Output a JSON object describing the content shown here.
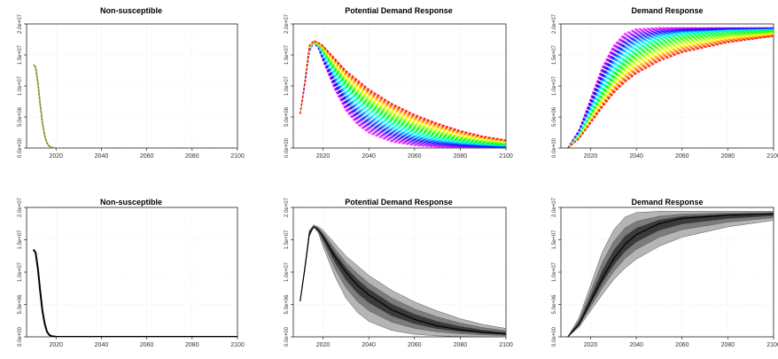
{
  "chart_data": [
    {
      "type": "line",
      "title": "Non-susceptible",
      "style": "rainbow",
      "xlim": [
        2007,
        2100
      ],
      "ylim": [
        0,
        20000000
      ],
      "x_ticks": [
        2020,
        2040,
        2060,
        2080,
        2100
      ],
      "y_ticks": [
        "0.0e+00",
        "5.0e+06",
        "1.0e+07",
        "1.5e+07",
        "2.0e+07"
      ],
      "series": [
        {
          "x": [
            2010,
            2011,
            2012,
            2013,
            2014,
            2015,
            2016,
            2017,
            2018,
            2020,
            2025,
            2030,
            2040,
            2060,
            2080,
            2100
          ],
          "values": [
            13500000,
            13000000,
            10500000,
            7000000,
            4000000,
            2000000,
            800000,
            300000,
            100000,
            20000,
            0,
            0,
            0,
            0,
            0,
            0
          ]
        }
      ]
    },
    {
      "type": "line",
      "title": "Potential Demand Response",
      "style": "rainbow",
      "xlim": [
        2007,
        2100
      ],
      "ylim": [
        0,
        20000000
      ],
      "x_ticks": [
        2020,
        2040,
        2060,
        2080,
        2100
      ],
      "y_ticks": [
        "0.0e+00",
        "5.0e+06",
        "1.0e+07",
        "1.5e+07",
        "2.0e+07"
      ],
      "series": [
        {
          "x": [
            2010,
            2012,
            2014,
            2016,
            2018,
            2020,
            2025,
            2030,
            2035,
            2040,
            2050,
            2060,
            2070,
            2080,
            2090,
            2100
          ],
          "values": [
            5500000,
            10000000,
            15500000,
            17000000,
            16000000,
            14000000,
            9500000,
            6000000,
            3800000,
            2400000,
            1000000,
            400000,
            150000,
            60000,
            20000,
            10000
          ]
        },
        {
          "x": [
            2010,
            2012,
            2014,
            2016,
            2018,
            2020,
            2025,
            2030,
            2035,
            2040,
            2050,
            2060,
            2070,
            2080,
            2090,
            2100
          ],
          "values": [
            5500000,
            10500000,
            16000000,
            17000000,
            16500000,
            15500000,
            12500000,
            10000000,
            8000000,
            6500000,
            4200000,
            2700000,
            1700000,
            1100000,
            700000,
            450000
          ]
        },
        {
          "x": [
            2010,
            2012,
            2014,
            2016,
            2018,
            2020,
            2025,
            2030,
            2035,
            2040,
            2050,
            2060,
            2070,
            2080,
            2090,
            2100
          ],
          "values": [
            5500000,
            10500000,
            16500000,
            17300000,
            17000000,
            16500000,
            14500000,
            12500000,
            11000000,
            9500000,
            7200000,
            5400000,
            4000000,
            2800000,
            1900000,
            1300000
          ]
        }
      ]
    },
    {
      "type": "line",
      "title": "Demand Response",
      "style": "rainbow",
      "xlim": [
        2007,
        2100
      ],
      "ylim": [
        0,
        20000000
      ],
      "x_ticks": [
        2020,
        2040,
        2060,
        2080,
        2100
      ],
      "y_ticks": [
        "0.0e+00",
        "5.0e+06",
        "1.0e+07",
        "1.5e+07",
        "2.0e+07"
      ],
      "series": [
        {
          "x": [
            2010,
            2015,
            2020,
            2025,
            2030,
            2035,
            2040,
            2050,
            2060,
            2080,
            2100
          ],
          "values": [
            0,
            3000000,
            8000000,
            13000000,
            16500000,
            18500000,
            19200000,
            19400000,
            19400000,
            19400000,
            19400000
          ]
        },
        {
          "x": [
            2010,
            2015,
            2020,
            2025,
            2030,
            2035,
            2040,
            2050,
            2060,
            2080,
            2100
          ],
          "values": [
            0,
            2000000,
            5500000,
            9000000,
            12000000,
            14300000,
            15800000,
            17500000,
            18300000,
            18800000,
            19000000
          ]
        },
        {
          "x": [
            2010,
            2015,
            2020,
            2025,
            2030,
            2035,
            2040,
            2050,
            2060,
            2080,
            2100
          ],
          "values": [
            0,
            1500000,
            4000000,
            6500000,
            8800000,
            10600000,
            12000000,
            14000000,
            15400000,
            17000000,
            18000000
          ]
        }
      ]
    },
    {
      "type": "line",
      "title": "Non-susceptible",
      "style": "gray-bands",
      "xlim": [
        2007,
        2100
      ],
      "ylim": [
        0,
        20000000
      ],
      "x_ticks": [
        2020,
        2040,
        2060,
        2080,
        2100
      ],
      "y_ticks": [
        "0.0e+00",
        "5.0e+06",
        "1.0e+07",
        "1.5e+07",
        "2.0e+07"
      ],
      "series": [
        {
          "x": [
            2010,
            2011,
            2012,
            2013,
            2014,
            2015,
            2016,
            2017,
            2018,
            2020,
            2025,
            2030,
            2040,
            2060,
            2080,
            2100
          ],
          "values": [
            13500000,
            13000000,
            10500000,
            7000000,
            4000000,
            2000000,
            800000,
            300000,
            100000,
            20000,
            0,
            0,
            0,
            0,
            0,
            0
          ]
        }
      ]
    },
    {
      "type": "line",
      "title": "Potential Demand Response",
      "style": "gray-bands",
      "xlim": [
        2007,
        2100
      ],
      "ylim": [
        0,
        20000000
      ],
      "x_ticks": [
        2020,
        2040,
        2060,
        2080,
        2100
      ],
      "y_ticks": [
        "0.0e+00",
        "5.0e+06",
        "1.0e+07",
        "1.5e+07",
        "2.0e+07"
      ],
      "series": [
        {
          "x": [
            2010,
            2012,
            2014,
            2016,
            2018,
            2020,
            2025,
            2030,
            2035,
            2040,
            2050,
            2060,
            2070,
            2080,
            2090,
            2100
          ],
          "values": [
            5500000,
            10000000,
            15500000,
            17000000,
            16000000,
            14000000,
            9500000,
            6000000,
            3800000,
            2400000,
            1000000,
            400000,
            150000,
            60000,
            20000,
            10000
          ]
        },
        {
          "x": [
            2010,
            2012,
            2014,
            2016,
            2018,
            2020,
            2025,
            2030,
            2035,
            2040,
            2050,
            2060,
            2070,
            2080,
            2090,
            2100
          ],
          "values": [
            5500000,
            10500000,
            16000000,
            17000000,
            16500000,
            15500000,
            12500000,
            10000000,
            8000000,
            6500000,
            4200000,
            2700000,
            1700000,
            1100000,
            700000,
            450000
          ]
        },
        {
          "x": [
            2010,
            2012,
            2014,
            2016,
            2018,
            2020,
            2025,
            2030,
            2035,
            2040,
            2050,
            2060,
            2070,
            2080,
            2090,
            2100
          ],
          "values": [
            5500000,
            10500000,
            16500000,
            17300000,
            17000000,
            16500000,
            14500000,
            12500000,
            11000000,
            9500000,
            7200000,
            5400000,
            4000000,
            2800000,
            1900000,
            1300000
          ]
        }
      ]
    },
    {
      "type": "line",
      "title": "Demand Response",
      "style": "gray-bands",
      "xlim": [
        2007,
        2100
      ],
      "ylim": [
        0,
        20000000
      ],
      "x_ticks": [
        2020,
        2040,
        2060,
        2080,
        2100
      ],
      "y_ticks": [
        "0.0e+00",
        "5.0e+06",
        "1.0e+07",
        "1.5e+07",
        "2.0e+07"
      ],
      "series": [
        {
          "x": [
            2010,
            2015,
            2020,
            2025,
            2030,
            2035,
            2040,
            2050,
            2060,
            2080,
            2100
          ],
          "values": [
            0,
            3000000,
            8000000,
            13000000,
            16500000,
            18500000,
            19200000,
            19400000,
            19400000,
            19400000,
            19400000
          ]
        },
        {
          "x": [
            2010,
            2015,
            2020,
            2025,
            2030,
            2035,
            2040,
            2050,
            2060,
            2080,
            2100
          ],
          "values": [
            0,
            2000000,
            5500000,
            9000000,
            12000000,
            14300000,
            15800000,
            17500000,
            18300000,
            18800000,
            19000000
          ]
        },
        {
          "x": [
            2010,
            2015,
            2020,
            2025,
            2030,
            2035,
            2040,
            2050,
            2060,
            2080,
            2100
          ],
          "values": [
            0,
            1500000,
            4000000,
            6500000,
            8800000,
            10600000,
            12000000,
            14000000,
            15400000,
            17000000,
            18000000
          ]
        }
      ]
    }
  ]
}
